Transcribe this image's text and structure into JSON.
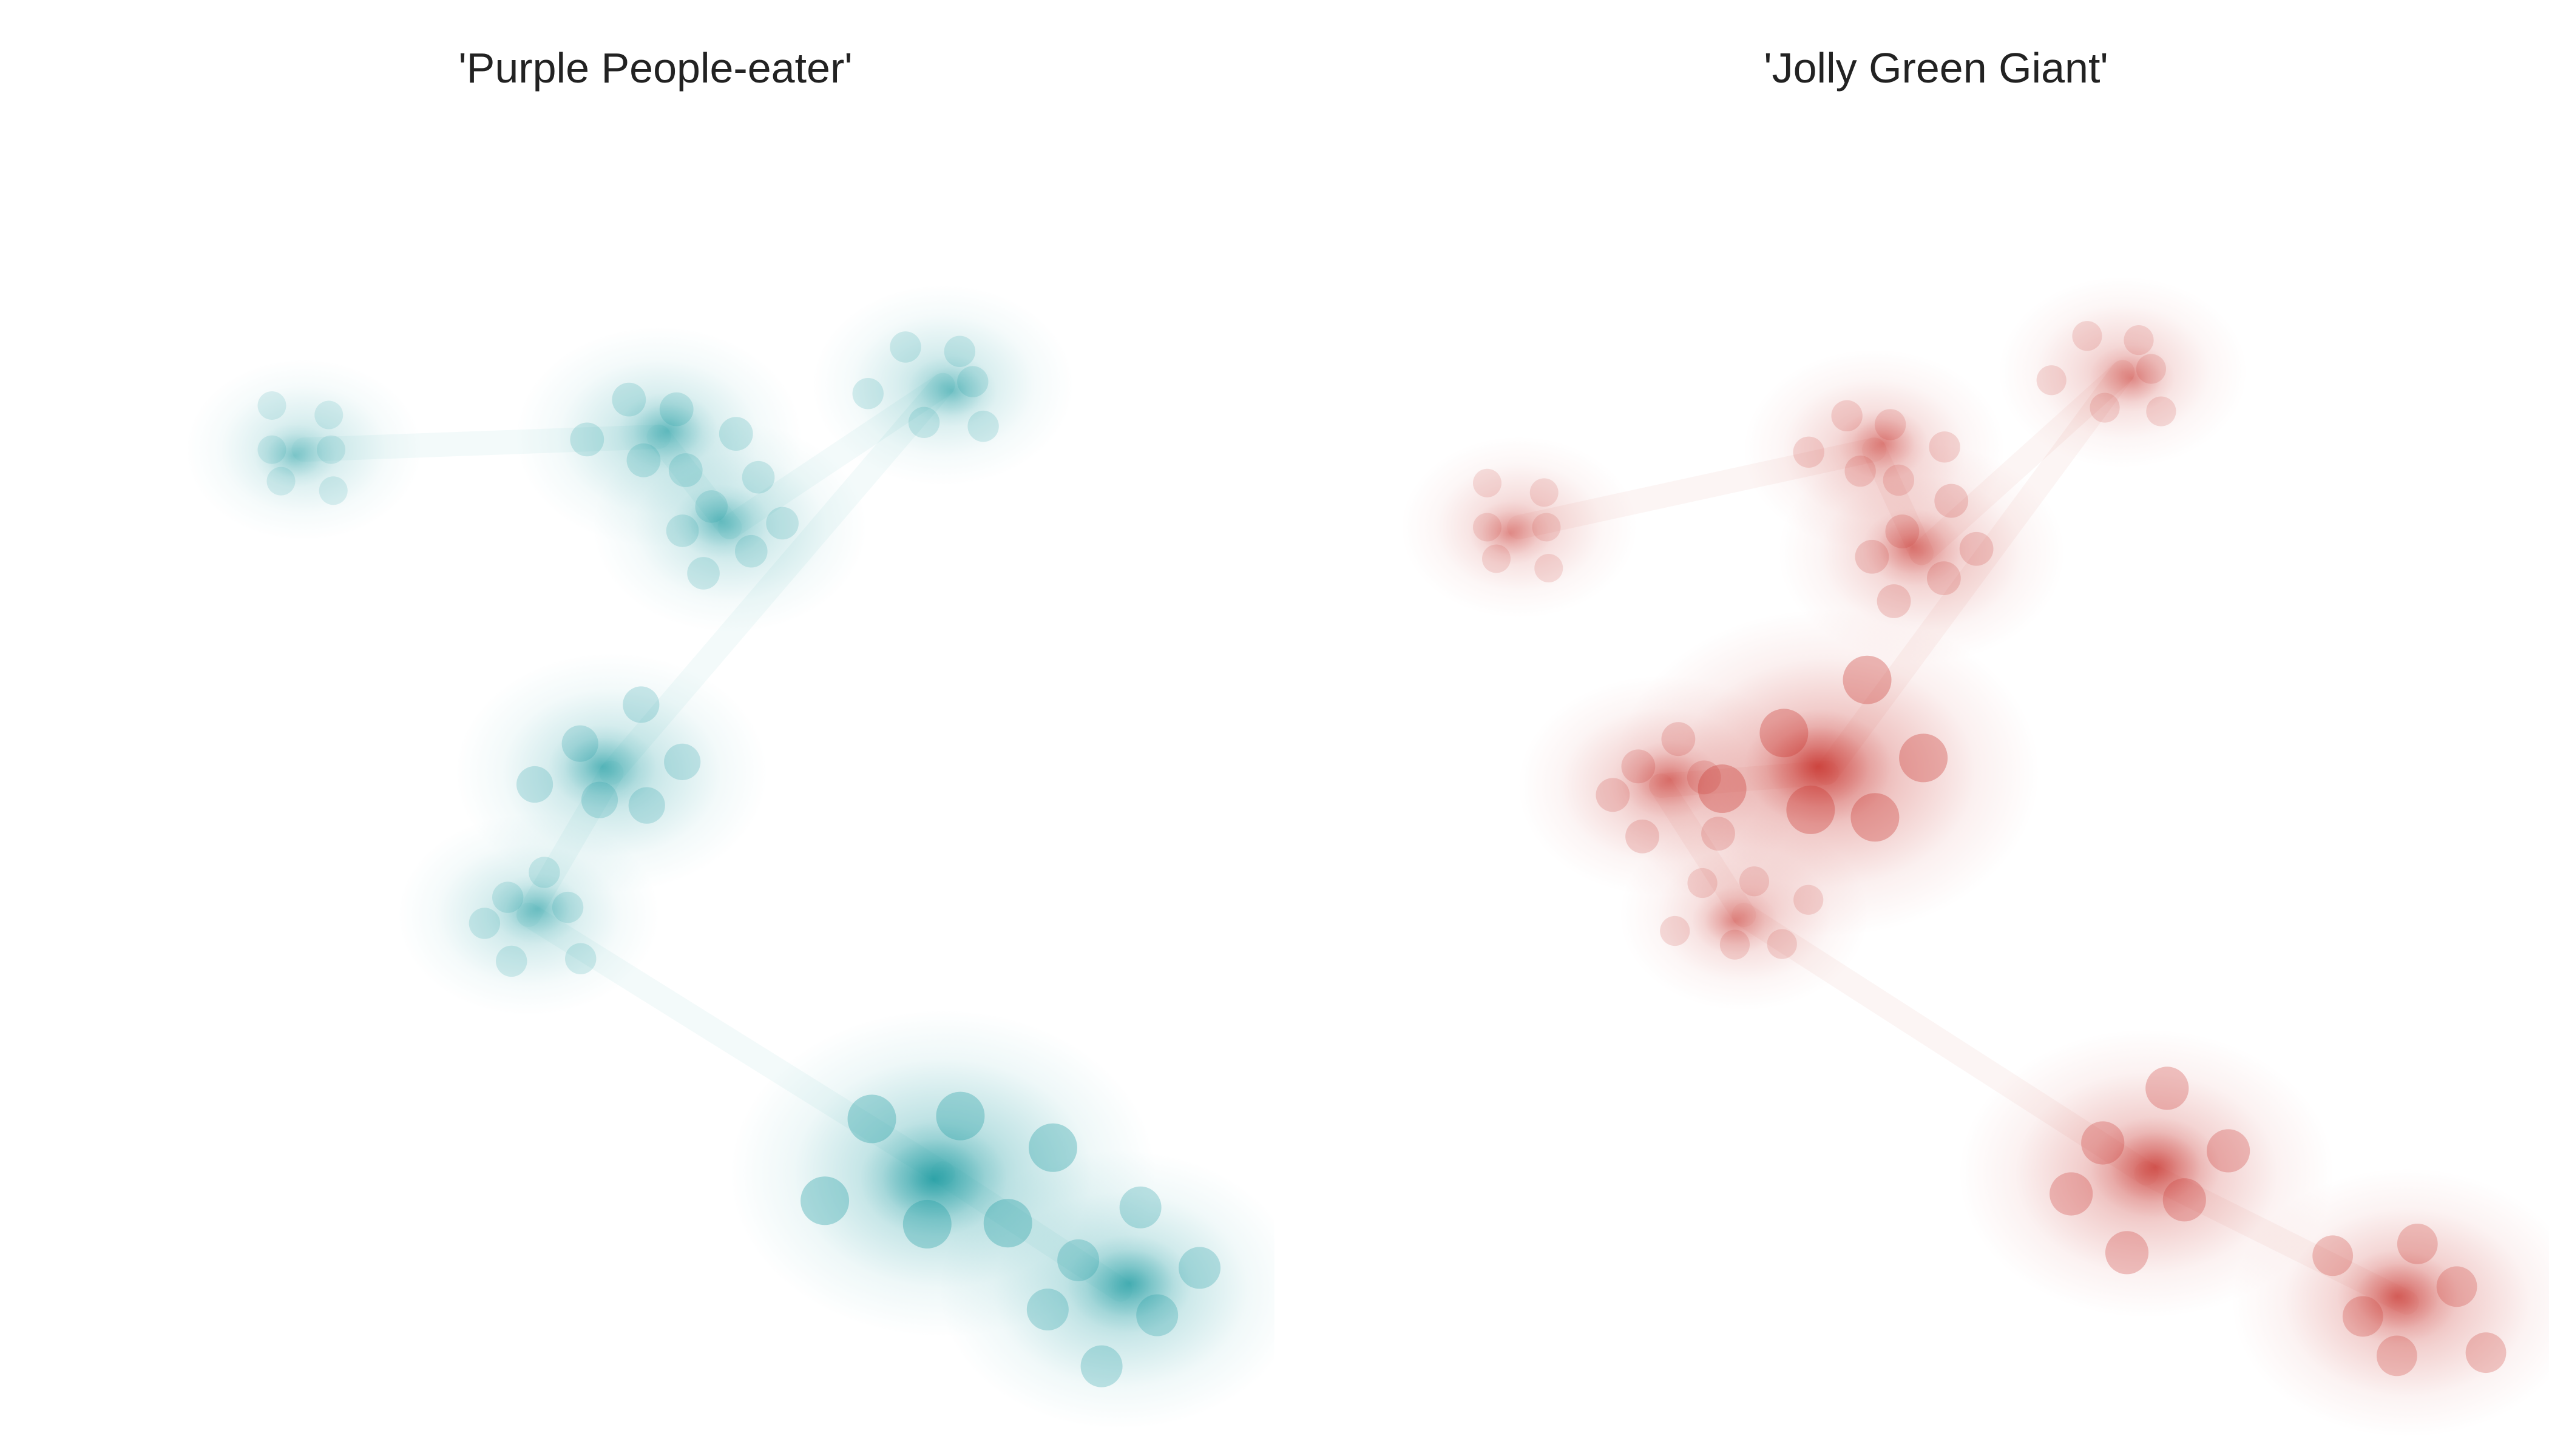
{
  "chart_data": [
    {
      "type": "heatmap",
      "title": "'Purple People-eater'",
      "color": "#1a9aa0",
      "grid": false,
      "axes_visible": false,
      "hotspots": [
        {
          "name": "northwest-cluster",
          "x": 0.19,
          "y": 0.24,
          "intensity": 0.25
        },
        {
          "name": "north-cluster",
          "x": 0.49,
          "y": 0.23,
          "intensity": 0.45
        },
        {
          "name": "north-central-cluster",
          "x": 0.55,
          "y": 0.3,
          "intensity": 0.4
        },
        {
          "name": "northeast-cluster",
          "x": 0.73,
          "y": 0.19,
          "intensity": 0.35
        },
        {
          "name": "central-cluster",
          "x": 0.45,
          "y": 0.49,
          "intensity": 0.55
        },
        {
          "name": "south-central-cluster",
          "x": 0.38,
          "y": 0.6,
          "intensity": 0.35
        },
        {
          "name": "southeast-cluster",
          "x": 0.73,
          "y": 0.8,
          "intensity": 1.0
        },
        {
          "name": "far-southeast-cluster",
          "x": 0.88,
          "y": 0.89,
          "intensity": 0.75
        }
      ]
    },
    {
      "type": "heatmap",
      "title": "'Jolly Green Giant'",
      "color": "#c8332d",
      "grid": false,
      "axes_visible": false,
      "hotspots": [
        {
          "name": "northwest-cluster",
          "x": 0.14,
          "y": 0.3,
          "intensity": 0.25
        },
        {
          "name": "north-cluster",
          "x": 0.44,
          "y": 0.24,
          "intensity": 0.35
        },
        {
          "name": "north-central-cluster",
          "x": 0.48,
          "y": 0.32,
          "intensity": 0.45
        },
        {
          "name": "northeast-cluster",
          "x": 0.65,
          "y": 0.18,
          "intensity": 0.3
        },
        {
          "name": "central-cluster",
          "x": 0.4,
          "y": 0.49,
          "intensity": 1.0
        },
        {
          "name": "west-central-cluster",
          "x": 0.26,
          "y": 0.5,
          "intensity": 0.45
        },
        {
          "name": "south-central-cluster",
          "x": 0.33,
          "y": 0.6,
          "intensity": 0.3
        },
        {
          "name": "southeast-cluster",
          "x": 0.67,
          "y": 0.8,
          "intensity": 0.8
        },
        {
          "name": "far-southeast-cluster",
          "x": 0.89,
          "y": 0.9,
          "intensity": 0.7
        }
      ]
    }
  ]
}
